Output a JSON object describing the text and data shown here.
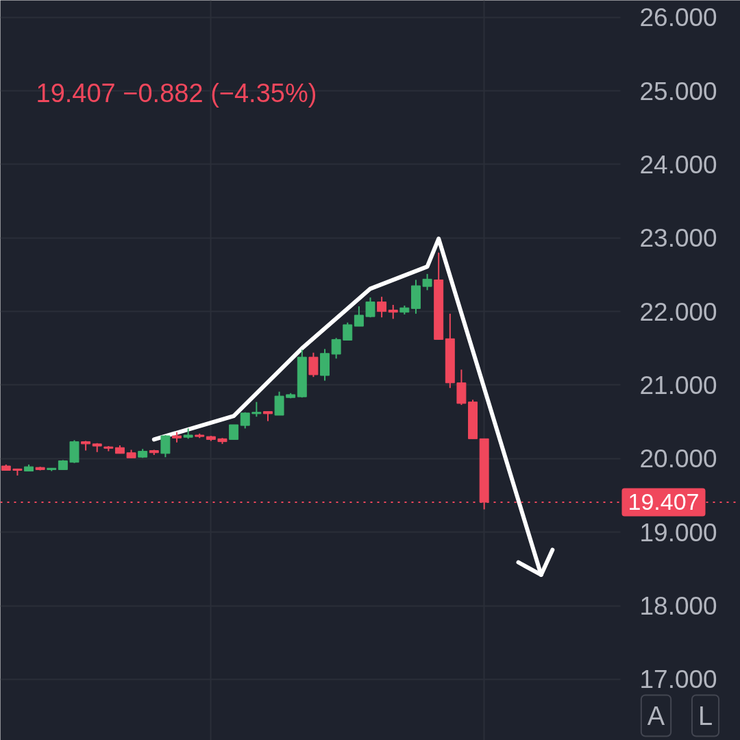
{
  "chart_data": {
    "type": "candlestick",
    "subtitle": "19.407  −0.882 (−4.35%)",
    "categories": [
      null,
      null,
      null,
      null,
      null,
      null,
      null,
      null,
      null,
      null,
      null,
      null,
      null,
      null,
      null,
      null,
      null,
      null,
      null,
      null,
      null,
      null,
      null,
      null,
      null,
      null,
      null,
      null,
      null,
      null,
      null,
      null,
      null,
      null,
      null,
      null,
      null,
      null,
      null,
      null,
      null,
      null,
      null,
      null,
      null,
      null,
      null,
      null,
      null,
      null,
      null,
      null,
      null,
      null,
      null,
      null,
      null,
      null,
      null,
      null,
      null,
      null,
      null,
      null,
      null
    ],
    "ohlc": [
      [
        19.9,
        19.92,
        19.84,
        19.84
      ],
      [
        19.86,
        19.86,
        19.77,
        19.84
      ],
      [
        19.83,
        19.92,
        19.83,
        19.89
      ],
      [
        19.88,
        19.89,
        19.84,
        19.85
      ],
      [
        19.85,
        19.87,
        19.83,
        19.87
      ],
      [
        19.85,
        19.98,
        19.85,
        19.97
      ],
      [
        19.95,
        20.25,
        19.94,
        20.23
      ],
      [
        20.23,
        20.24,
        20.11,
        20.2
      ],
      [
        20.2,
        20.21,
        20.09,
        20.17
      ],
      [
        20.16,
        20.17,
        20.1,
        20.14
      ],
      [
        20.15,
        20.18,
        20.07,
        20.07
      ],
      [
        20.08,
        20.12,
        20.01,
        20.01
      ],
      [
        20.02,
        20.13,
        20.01,
        20.1
      ],
      [
        20.11,
        20.12,
        20.05,
        20.08
      ],
      [
        20.07,
        20.32,
        20.02,
        20.31
      ],
      [
        20.31,
        20.36,
        20.22,
        20.28
      ],
      [
        20.29,
        20.41,
        20.27,
        20.32
      ],
      [
        20.32,
        20.34,
        20.28,
        20.3
      ],
      [
        20.3,
        20.31,
        20.24,
        20.26
      ],
      [
        20.27,
        20.28,
        20.2,
        20.23
      ],
      [
        20.26,
        20.46,
        20.26,
        20.46
      ],
      [
        20.45,
        20.63,
        20.41,
        20.62
      ],
      [
        20.61,
        20.77,
        20.57,
        20.63
      ],
      [
        20.64,
        20.64,
        20.51,
        20.61
      ],
      [
        20.59,
        20.91,
        20.59,
        20.85
      ],
      [
        20.83,
        20.89,
        20.82,
        20.87
      ],
      [
        20.84,
        21.48,
        20.83,
        21.38
      ],
      [
        21.38,
        21.44,
        21.11,
        21.14
      ],
      [
        21.13,
        21.49,
        21.06,
        21.43
      ],
      [
        21.42,
        21.64,
        21.36,
        21.62
      ],
      [
        21.61,
        21.85,
        21.61,
        21.82
      ],
      [
        21.8,
        22.07,
        21.8,
        21.95
      ],
      [
        21.93,
        22.19,
        21.92,
        22.13
      ],
      [
        22.13,
        22.2,
        21.92,
        22.0
      ],
      [
        22.02,
        22.09,
        21.9,
        21.99
      ],
      [
        21.99,
        22.08,
        21.96,
        22.05
      ],
      [
        22.04,
        22.43,
        21.97,
        22.35
      ],
      [
        22.34,
        22.51,
        22.29,
        22.44
      ],
      [
        22.43,
        22.8,
        21.62,
        21.62
      ],
      [
        21.63,
        21.97,
        20.96,
        21.03
      ],
      [
        21.03,
        21.21,
        20.73,
        20.75
      ],
      [
        20.77,
        20.8,
        20.27,
        20.27
      ],
      [
        20.27,
        20.27,
        19.31,
        19.407
      ],
      null,
      null,
      null,
      null,
      null,
      null,
      null,
      null,
      null,
      null,
      null,
      null,
      null,
      null,
      null,
      null,
      null,
      null,
      null,
      null,
      null,
      null
    ],
    "colors": [
      "#f0475c",
      "#f0475c",
      "#3bb26c",
      "#f0475c",
      "#3bb26c",
      "#3bb26c",
      "#3bb26c",
      "#f0475c",
      "#f0475c",
      "#f0475c",
      "#f0475c",
      "#f0475c",
      "#3bb26c",
      "#f0475c",
      "#3bb26c",
      "#f0475c",
      "#3bb26c",
      "#f0475c",
      "#f0475c",
      "#f0475c",
      "#3bb26c",
      "#3bb26c",
      "#3bb26c",
      "#f0475c",
      "#3bb26c",
      "#3bb26c",
      "#3bb26c",
      "#f0475c",
      "#3bb26c",
      "#3bb26c",
      "#3bb26c",
      "#3bb26c",
      "#3bb26c",
      "#f0475c",
      "#f0475c",
      "#3bb26c",
      "#3bb26c",
      "#3bb26c",
      "#f0475c",
      "#f0475c",
      "#f0475c",
      "#f0475c",
      "#f0475c",
      null,
      null,
      null,
      null,
      null,
      null,
      null,
      null,
      null,
      null,
      null,
      null,
      null,
      null,
      null,
      null,
      null,
      null,
      null,
      null,
      null,
      null
    ],
    "series": [
      {
        "type": "line",
        "color": "#ffffff",
        "values": [
          null,
          null,
          null,
          null,
          null,
          null,
          null,
          null,
          null,
          null,
          null,
          null,
          null,
          20.26,
          null,
          null,
          null,
          null,
          null,
          null,
          20.58,
          null,
          null,
          null,
          null,
          null,
          21.5,
          null,
          null,
          null,
          null,
          null,
          22.31,
          null,
          null,
          null,
          null,
          22.61,
          22.99,
          null,
          null,
          null,
          null,
          null,
          null,
          null,
          null,
          18.42,
          null,
          null,
          null,
          null,
          null,
          null,
          null,
          null,
          null,
          null,
          null,
          null,
          null,
          null,
          null,
          null,
          null
        ]
      },
      {
        "type": "line",
        "color": "#ffffff",
        "values": [
          null,
          null,
          null,
          null,
          null,
          null,
          null,
          null,
          null,
          null,
          null,
          null,
          null,
          null,
          null,
          null,
          null,
          null,
          null,
          null,
          null,
          null,
          null,
          null,
          null,
          null,
          null,
          null,
          null,
          null,
          null,
          null,
          null,
          null,
          null,
          null,
          null,
          null,
          null,
          null,
          null,
          null,
          null,
          null,
          null,
          18.59,
          null,
          18.42,
          18.76,
          null,
          null,
          null,
          null,
          null,
          null,
          null,
          null,
          null,
          null,
          null,
          null,
          null,
          null,
          null,
          null
        ]
      }
    ],
    "ylim": [
      16.17,
      26.23
    ],
    "yticks": [
      {
        "value": 17,
        "label": "17.000"
      },
      {
        "value": 18,
        "label": "18.000"
      },
      {
        "value": 19,
        "label": "19.000"
      },
      {
        "value": 20,
        "label": "20.000"
      },
      {
        "value": 21,
        "label": "21.000"
      },
      {
        "value": 22,
        "label": "22.000"
      },
      {
        "value": 23,
        "label": "23.000"
      },
      {
        "value": 24,
        "label": "24.000"
      },
      {
        "value": 25,
        "label": "25.000"
      },
      {
        "value": 26,
        "label": "26.000"
      }
    ],
    "ref_lines": [
      {
        "axis": "y",
        "value": 19.407,
        "label": "19.407",
        "color": "#f0475c",
        "line_style": "dotted"
      }
    ],
    "grid": true,
    "tick_labels": "y",
    "annotations": [
      "A",
      "L"
    ]
  }
}
